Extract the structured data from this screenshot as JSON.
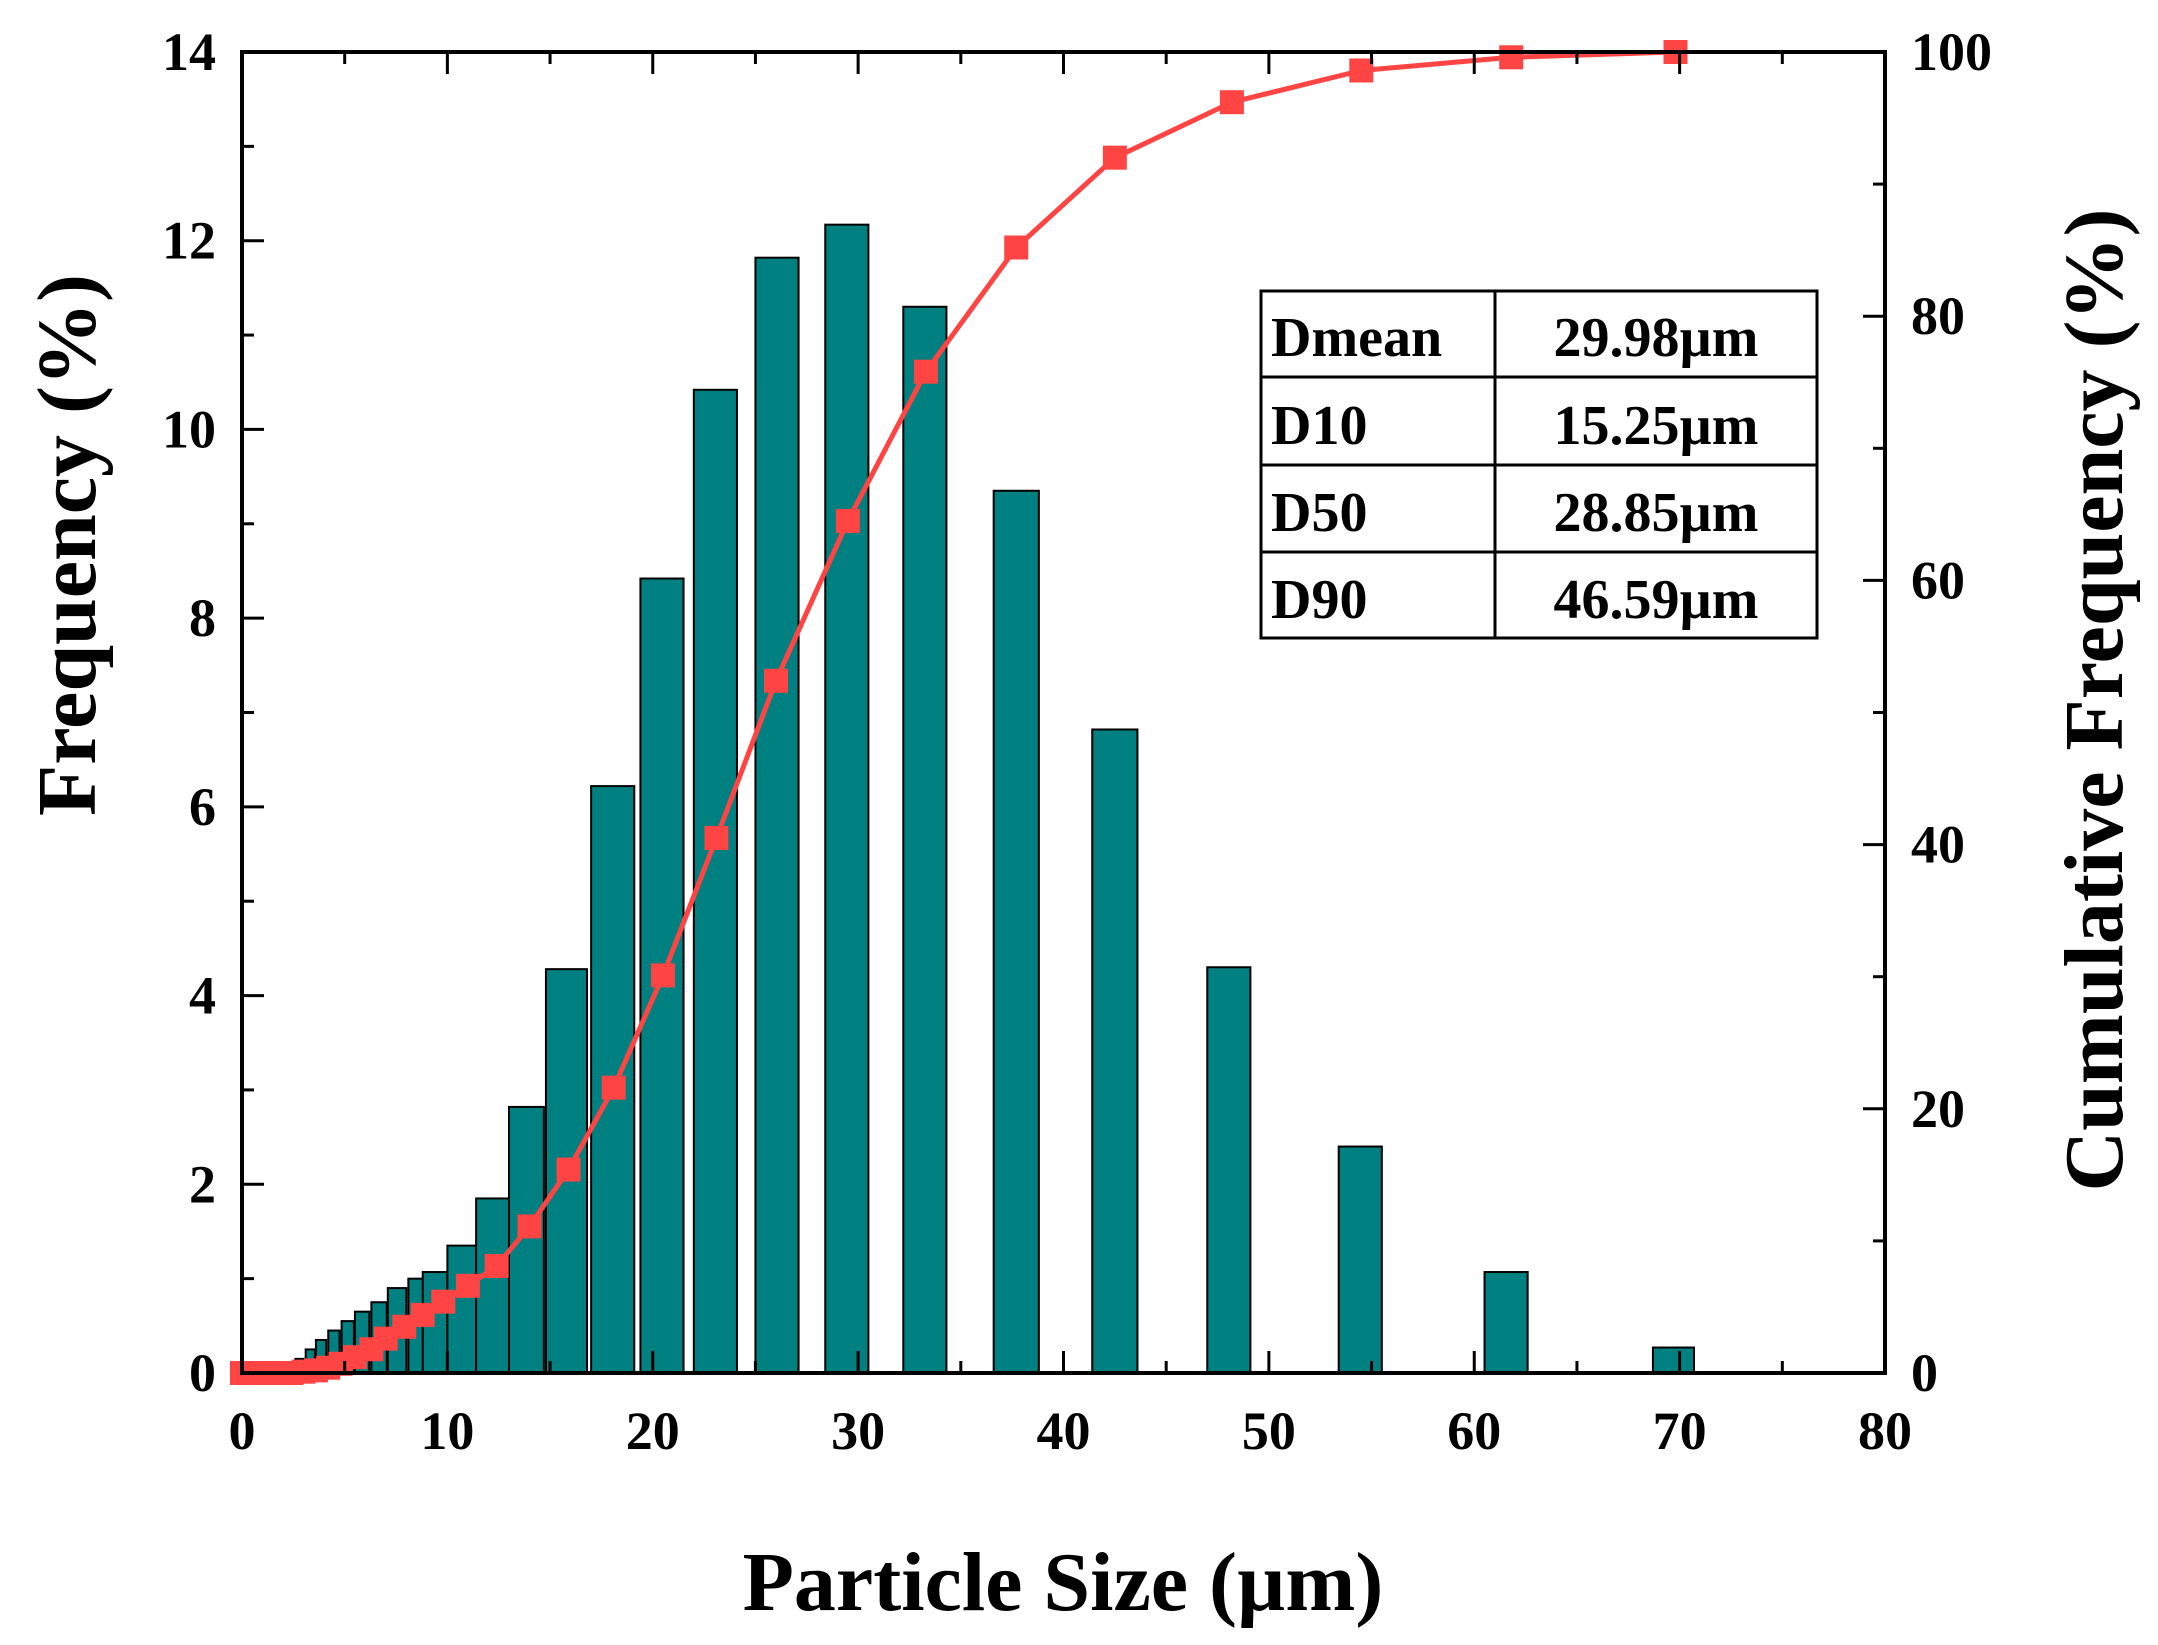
{
  "chart_data": {
    "type": "bar",
    "xlabel": "Particle Size (µm)",
    "ylabel": "Frequency (%)",
    "y2label": "Cumulative Frequency (%)",
    "xlim": [
      0,
      80
    ],
    "ylim": [
      0,
      14
    ],
    "y2lim": [
      0,
      100
    ],
    "xticks": [
      "0",
      "10",
      "20",
      "30",
      "40",
      "50",
      "60",
      "70",
      "80"
    ],
    "yticks": [
      "0",
      "2",
      "4",
      "6",
      "8",
      "10",
      "12",
      "14"
    ],
    "y2ticks": [
      "0",
      "20",
      "40",
      "60",
      "80",
      "100"
    ],
    "colors": {
      "bar": "#008080",
      "line": "#ff4444",
      "axis": "#000000"
    },
    "bars": [
      {
        "x": 0.0,
        "width": 2.0,
        "value": 0.0
      },
      {
        "x": 2.6,
        "width": 0.4,
        "value": 0.15
      },
      {
        "x": 3.1,
        "width": 0.45,
        "value": 0.25
      },
      {
        "x": 3.6,
        "width": 0.5,
        "value": 0.35
      },
      {
        "x": 4.2,
        "width": 0.55,
        "value": 0.45
      },
      {
        "x": 4.85,
        "width": 0.6,
        "value": 0.55
      },
      {
        "x": 5.5,
        "width": 0.7,
        "value": 0.65
      },
      {
        "x": 6.3,
        "width": 0.75,
        "value": 0.75
      },
      {
        "x": 7.1,
        "width": 0.9,
        "value": 0.9
      },
      {
        "x": 8.1,
        "width": 1.1,
        "value": 1.0
      },
      {
        "x": 8.8,
        "width": 1.2,
        "value": 1.07
      },
      {
        "x": 10.0,
        "width": 1.4,
        "value": 1.35
      },
      {
        "x": 11.4,
        "width": 1.6,
        "value": 1.85
      },
      {
        "x": 13.0,
        "width": 1.7,
        "value": 2.82
      },
      {
        "x": 14.8,
        "width": 2.0,
        "value": 4.28
      },
      {
        "x": 17.0,
        "width": 2.1,
        "value": 6.22
      },
      {
        "x": 19.4,
        "width": 2.1,
        "value": 8.42
      },
      {
        "x": 22.0,
        "width": 2.1,
        "value": 10.42
      },
      {
        "x": 25.0,
        "width": 2.1,
        "value": 11.82
      },
      {
        "x": 28.4,
        "width": 2.1,
        "value": 12.17
      },
      {
        "x": 32.2,
        "width": 2.1,
        "value": 11.3
      },
      {
        "x": 36.6,
        "width": 2.2,
        "value": 9.35
      },
      {
        "x": 41.4,
        "width": 2.2,
        "value": 6.82
      },
      {
        "x": 47.0,
        "width": 2.1,
        "value": 4.3
      },
      {
        "x": 53.4,
        "width": 2.1,
        "value": 2.4
      },
      {
        "x": 60.5,
        "width": 2.1,
        "value": 1.07
      },
      {
        "x": 68.7,
        "width": 2.0,
        "value": 0.27
      }
    ],
    "cumulative": {
      "x": [
        0,
        0.6,
        1.2,
        1.8,
        2.4,
        3.0,
        3.6,
        4.2,
        4.8,
        5.5,
        6.3,
        7.0,
        7.9,
        8.8,
        9.8,
        11.0,
        12.4,
        14.0,
        15.9,
        18.1,
        20.5,
        23.1,
        26.0,
        29.5,
        33.3,
        37.7,
        42.5,
        48.2,
        54.5,
        61.8,
        69.8
      ],
      "values": [
        0,
        0,
        0,
        0,
        0,
        0.1,
        0.2,
        0.4,
        0.7,
        1.2,
        1.8,
        2.6,
        3.5,
        4.4,
        5.4,
        6.6,
        8.1,
        11.1,
        15.4,
        21.6,
        30.1,
        40.5,
        52.4,
        64.5,
        75.8,
        85.2,
        92.0,
        96.2,
        98.6,
        99.6,
        100.0
      ]
    },
    "stats_table": [
      {
        "label": "Dmean",
        "value": "29.98µm"
      },
      {
        "label": "D10",
        "value": "15.25µm"
      },
      {
        "label": "D50",
        "value": "28.85µm"
      },
      {
        "label": "D90",
        "value": "46.59µm"
      }
    ]
  }
}
